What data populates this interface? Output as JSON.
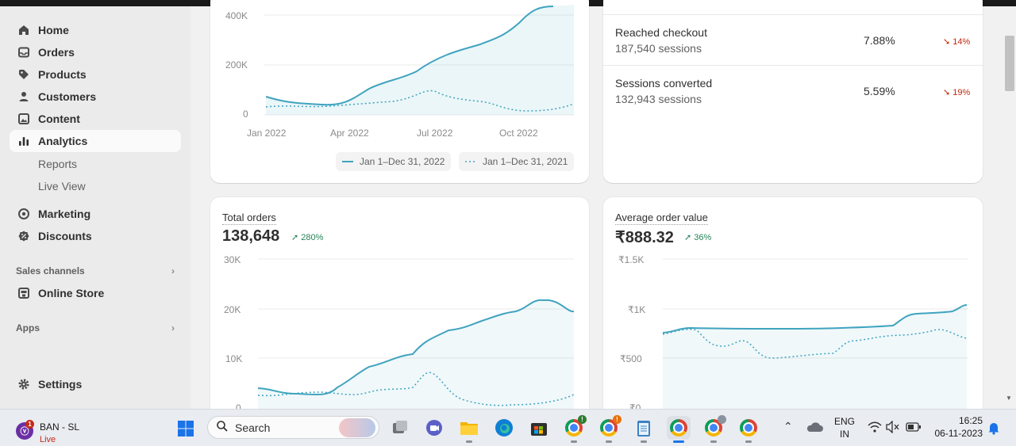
{
  "sidebar": {
    "items": [
      {
        "label": "Home",
        "icon": "home-icon"
      },
      {
        "label": "Orders",
        "icon": "inbox-icon"
      },
      {
        "label": "Products",
        "icon": "tag-icon"
      },
      {
        "label": "Customers",
        "icon": "person-icon"
      },
      {
        "label": "Content",
        "icon": "image-icon"
      },
      {
        "label": "Analytics",
        "icon": "bar-chart-icon"
      }
    ],
    "analytics_sub": [
      "Reports",
      "Live View"
    ],
    "marketing": {
      "label": "Marketing",
      "icon": "target-icon"
    },
    "discounts": {
      "label": "Discounts",
      "icon": "discount-icon"
    },
    "sales_channels": "Sales channels",
    "online_store": {
      "label": "Online Store",
      "icon": "store-icon"
    },
    "apps": "Apps",
    "settings": {
      "label": "Settings",
      "icon": "gear-icon"
    }
  },
  "sales_chart": {
    "y_ticks": [
      "400K",
      "200K",
      "0"
    ],
    "x_ticks": [
      "Jan 2022",
      "Apr 2022",
      "Jul 2022",
      "Oct 2022"
    ],
    "legend_current": "Jan 1–Dec 31, 2022",
    "legend_previous": "Jan 1–Dec 31, 2021"
  },
  "funnel": {
    "rows": [
      {
        "name": "Reached checkout",
        "sessions": "187,540 sessions",
        "pct": "7.88%",
        "change": "14%"
      },
      {
        "name": "Sessions converted",
        "sessions": "132,943 sessions",
        "pct": "5.59%",
        "change": "19%"
      }
    ]
  },
  "total_orders": {
    "title": "Total orders",
    "value": "138,648",
    "change": "280%",
    "y_ticks": [
      "30K",
      "20K",
      "10K",
      "0"
    ]
  },
  "aov": {
    "title": "Average order value",
    "value": "₹888.32",
    "change": "36%",
    "y_ticks": [
      "₹1.5K",
      "₹1K",
      "₹500",
      "₹0"
    ]
  },
  "chart_data": [
    {
      "type": "line",
      "x": [
        "Jan 2022",
        "Apr 2022",
        "Jul 2022",
        "Oct 2022"
      ],
      "series": [
        {
          "name": "Jan 1–Dec 31, 2022",
          "values": [
            75000,
            45000,
            190000,
            420000
          ]
        },
        {
          "name": "Jan 1–Dec 31, 2021",
          "values": [
            32000,
            30000,
            100000,
            40000
          ]
        }
      ]
    },
    {
      "type": "line",
      "title": "Total orders",
      "ylim": [
        0,
        30000
      ],
      "series": [
        {
          "values": [
            3800,
            2700,
            2400,
            3900,
            14300,
            17000,
            21500,
            19500
          ]
        },
        {
          "values": [
            2500,
            2900,
            3200,
            5000,
            7000,
            2000,
            1200,
            2800
          ]
        }
      ]
    },
    {
      "type": "line",
      "title": "Average order value",
      "ylim": [
        0,
        1500
      ],
      "series": [
        {
          "values": [
            750,
            805,
            800,
            800,
            805,
            820,
            950,
            1050
          ]
        },
        {
          "values": [
            730,
            790,
            600,
            520,
            560,
            700,
            760,
            700
          ]
        }
      ]
    }
  ],
  "taskbar": {
    "live_app_name": "BAN - SL",
    "live_status": "Live",
    "live_badge": "1",
    "search_placeholder": "Search",
    "lang_top": "ENG",
    "lang_bottom": "IN",
    "time": "16:25",
    "date": "06-11-2023",
    "chrome_badge_orange": "!",
    "chrome_badge_green": "!"
  },
  "colors": {
    "accent": "#3fa3bf",
    "sidebar_bg": "#ebebeb",
    "page_bg": "#f1f1f1",
    "positive": "#29845a",
    "negative": "#c5280c"
  }
}
